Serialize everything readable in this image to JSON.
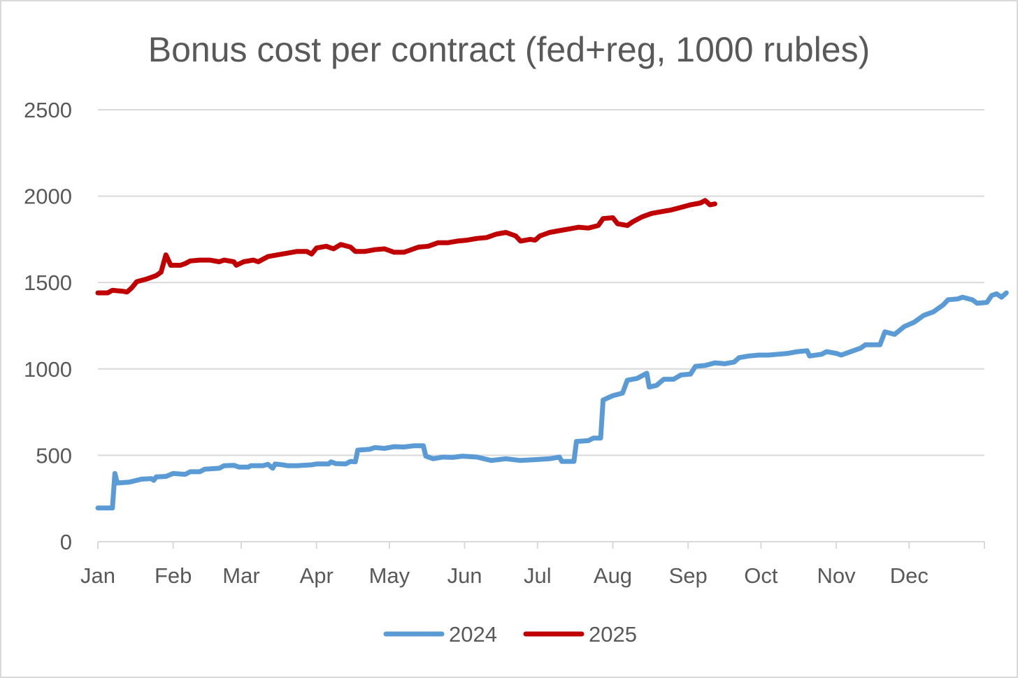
{
  "chart_data": {
    "type": "line",
    "title": "Bonus cost per contract (fed+reg, 1000 rubles)",
    "xlabel": "",
    "ylabel": "",
    "ylim": [
      0,
      2500
    ],
    "yticks": [
      0,
      500,
      1000,
      1500,
      2000,
      2500
    ],
    "xlim": [
      0,
      365
    ],
    "x_unit": "day of year",
    "xticks": [
      {
        "label": "Jan",
        "day": 0
      },
      {
        "label": "Feb",
        "day": 31
      },
      {
        "label": "Mar",
        "day": 59
      },
      {
        "label": "Apr",
        "day": 90
      },
      {
        "label": "May",
        "day": 120
      },
      {
        "label": "Jun",
        "day": 151
      },
      {
        "label": "Jul",
        "day": 181
      },
      {
        "label": "Aug",
        "day": 212
      },
      {
        "label": "Sep",
        "day": 243
      },
      {
        "label": "Oct",
        "day": 273
      },
      {
        "label": "Nov",
        "day": 304
      },
      {
        "label": "Dec",
        "day": 334
      }
    ],
    "grid": true,
    "legend_position": "bottom",
    "series": [
      {
        "name": "2024",
        "color": "#5b9bd5",
        "points": [
          [
            0,
            195
          ],
          [
            6,
            195
          ],
          [
            7,
            395
          ],
          [
            8,
            340
          ],
          [
            13,
            345
          ],
          [
            18,
            362
          ],
          [
            22,
            365
          ],
          [
            23,
            355
          ],
          [
            24,
            375
          ],
          [
            28,
            378
          ],
          [
            31,
            395
          ],
          [
            36,
            390
          ],
          [
            38,
            405
          ],
          [
            42,
            405
          ],
          [
            44,
            420
          ],
          [
            50,
            425
          ],
          [
            52,
            440
          ],
          [
            56,
            442
          ],
          [
            58,
            432
          ],
          [
            62,
            432
          ],
          [
            63,
            440
          ],
          [
            68,
            440
          ],
          [
            70,
            448
          ],
          [
            72,
            425
          ],
          [
            73,
            450
          ],
          [
            76,
            445
          ],
          [
            78,
            440
          ],
          [
            82,
            440
          ],
          [
            88,
            445
          ],
          [
            90,
            450
          ],
          [
            95,
            450
          ],
          [
            96,
            462
          ],
          [
            98,
            452
          ],
          [
            102,
            450
          ],
          [
            104,
            465
          ],
          [
            106,
            462
          ],
          [
            107,
            530
          ],
          [
            112,
            535
          ],
          [
            114,
            545
          ],
          [
            118,
            540
          ],
          [
            122,
            550
          ],
          [
            126,
            548
          ],
          [
            130,
            555
          ],
          [
            134,
            555
          ],
          [
            135,
            495
          ],
          [
            138,
            480
          ],
          [
            142,
            490
          ],
          [
            146,
            488
          ],
          [
            150,
            495
          ],
          [
            156,
            490
          ],
          [
            162,
            470
          ],
          [
            168,
            480
          ],
          [
            174,
            470
          ],
          [
            180,
            475
          ],
          [
            186,
            480
          ],
          [
            190,
            490
          ],
          [
            191,
            465
          ],
          [
            196,
            465
          ],
          [
            197,
            580
          ],
          [
            202,
            585
          ],
          [
            204,
            600
          ],
          [
            207,
            600
          ],
          [
            208,
            820
          ],
          [
            212,
            845
          ],
          [
            216,
            860
          ],
          [
            218,
            935
          ],
          [
            222,
            945
          ],
          [
            226,
            975
          ],
          [
            227,
            895
          ],
          [
            230,
            905
          ],
          [
            233,
            940
          ],
          [
            237,
            940
          ],
          [
            240,
            965
          ],
          [
            244,
            970
          ],
          [
            246,
            1015
          ],
          [
            250,
            1020
          ],
          [
            254,
            1035
          ],
          [
            258,
            1030
          ],
          [
            262,
            1040
          ],
          [
            264,
            1065
          ],
          [
            268,
            1075
          ],
          [
            272,
            1080
          ],
          [
            276,
            1080
          ],
          [
            280,
            1085
          ],
          [
            284,
            1090
          ],
          [
            288,
            1100
          ],
          [
            292,
            1105
          ],
          [
            293,
            1075
          ],
          [
            298,
            1085
          ],
          [
            300,
            1100
          ],
          [
            304,
            1090
          ],
          [
            306,
            1080
          ],
          [
            310,
            1100
          ],
          [
            314,
            1120
          ],
          [
            316,
            1140
          ],
          [
            322,
            1140
          ],
          [
            324,
            1215
          ],
          [
            328,
            1200
          ],
          [
            332,
            1245
          ],
          [
            336,
            1270
          ],
          [
            340,
            1310
          ],
          [
            344,
            1330
          ],
          [
            348,
            1370
          ],
          [
            350,
            1400
          ],
          [
            354,
            1405
          ],
          [
            356,
            1415
          ],
          [
            360,
            1400
          ],
          [
            362,
            1380
          ],
          [
            366,
            1385
          ],
          [
            368,
            1425
          ],
          [
            370,
            1435
          ],
          [
            372,
            1415
          ],
          [
            374,
            1440
          ]
        ]
      },
      {
        "name": "2025",
        "color": "#c00000",
        "points": [
          [
            0,
            1440
          ],
          [
            4,
            1440
          ],
          [
            6,
            1455
          ],
          [
            10,
            1450
          ],
          [
            12,
            1445
          ],
          [
            14,
            1470
          ],
          [
            16,
            1505
          ],
          [
            20,
            1520
          ],
          [
            24,
            1540
          ],
          [
            26,
            1560
          ],
          [
            28,
            1660
          ],
          [
            30,
            1600
          ],
          [
            34,
            1600
          ],
          [
            36,
            1610
          ],
          [
            38,
            1625
          ],
          [
            42,
            1630
          ],
          [
            46,
            1630
          ],
          [
            50,
            1620
          ],
          [
            52,
            1630
          ],
          [
            56,
            1620
          ],
          [
            57,
            1600
          ],
          [
            60,
            1620
          ],
          [
            64,
            1630
          ],
          [
            66,
            1620
          ],
          [
            70,
            1650
          ],
          [
            74,
            1660
          ],
          [
            78,
            1670
          ],
          [
            82,
            1680
          ],
          [
            86,
            1680
          ],
          [
            88,
            1665
          ],
          [
            90,
            1700
          ],
          [
            94,
            1710
          ],
          [
            97,
            1695
          ],
          [
            100,
            1720
          ],
          [
            104,
            1705
          ],
          [
            106,
            1680
          ],
          [
            110,
            1680
          ],
          [
            114,
            1690
          ],
          [
            118,
            1695
          ],
          [
            122,
            1675
          ],
          [
            126,
            1675
          ],
          [
            128,
            1685
          ],
          [
            132,
            1705
          ],
          [
            136,
            1710
          ],
          [
            140,
            1730
          ],
          [
            144,
            1730
          ],
          [
            148,
            1740
          ],
          [
            152,
            1745
          ],
          [
            156,
            1755
          ],
          [
            160,
            1760
          ],
          [
            164,
            1780
          ],
          [
            168,
            1790
          ],
          [
            172,
            1770
          ],
          [
            174,
            1740
          ],
          [
            178,
            1750
          ],
          [
            180,
            1745
          ],
          [
            182,
            1770
          ],
          [
            186,
            1790
          ],
          [
            190,
            1800
          ],
          [
            194,
            1810
          ],
          [
            198,
            1820
          ],
          [
            202,
            1815
          ],
          [
            206,
            1830
          ],
          [
            208,
            1870
          ],
          [
            212,
            1875
          ],
          [
            214,
            1840
          ],
          [
            218,
            1830
          ],
          [
            220,
            1850
          ],
          [
            224,
            1880
          ],
          [
            228,
            1900
          ],
          [
            232,
            1910
          ],
          [
            236,
            1920
          ],
          [
            240,
            1935
          ],
          [
            244,
            1950
          ],
          [
            248,
            1960
          ],
          [
            250,
            1975
          ],
          [
            252,
            1950
          ],
          [
            254,
            1955
          ]
        ]
      }
    ]
  }
}
